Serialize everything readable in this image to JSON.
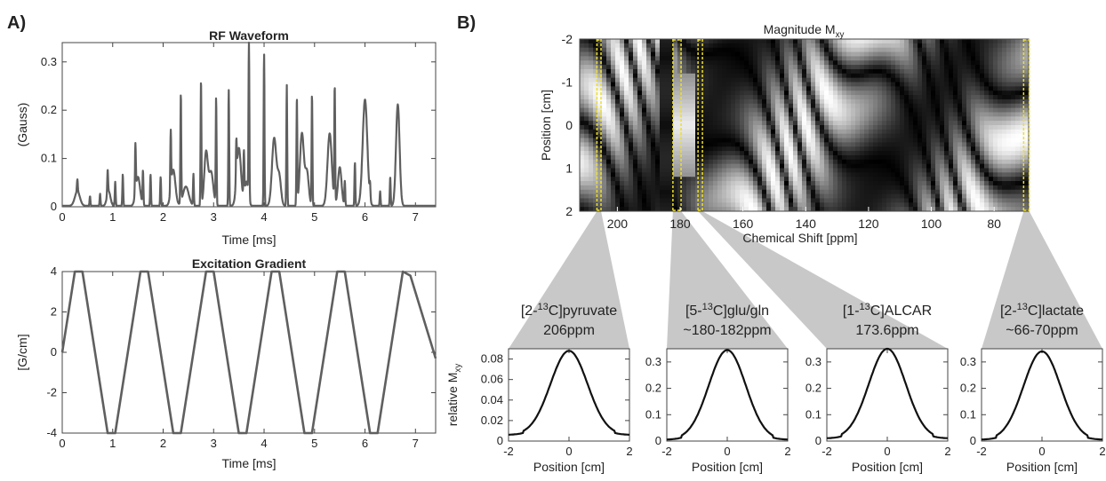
{
  "panels": {
    "a_label": "A)",
    "b_label": "B)"
  },
  "colors": {
    "trace": "#5f5f5f",
    "profile": "#111111",
    "highlight": "#f0e020",
    "wedge": "#c8c8c8",
    "axis": "#444444"
  },
  "chart_data": [
    {
      "id": "rf",
      "type": "line",
      "title": "RF Waveform",
      "xlabel": "Time [ms]",
      "ylabel": "(Gauss)",
      "xlim": [
        0,
        7.4
      ],
      "ylim": [
        0,
        0.34
      ],
      "xticks": [
        0,
        1,
        2,
        3,
        4,
        5,
        6,
        7
      ],
      "yticks": [
        0,
        0.1,
        0.2,
        0.3
      ],
      "ytick_labels": [
        "0",
        "0.1",
        "0.2",
        "0.3"
      ],
      "spikes": [
        {
          "x": 0.3,
          "y": 0.025
        },
        {
          "x": 0.55,
          "y": 0.02
        },
        {
          "x": 0.75,
          "y": 0.025
        },
        {
          "x": 0.9,
          "y": 0.05
        },
        {
          "x": 1.05,
          "y": 0.05
        },
        {
          "x": 1.2,
          "y": 0.065
        },
        {
          "x": 1.45,
          "y": 0.1
        },
        {
          "x": 1.6,
          "y": 0.07
        },
        {
          "x": 1.75,
          "y": 0.065
        },
        {
          "x": 1.95,
          "y": 0.06
        },
        {
          "x": 2.15,
          "y": 0.12
        },
        {
          "x": 2.35,
          "y": 0.225
        },
        {
          "x": 2.6,
          "y": 0.065
        },
        {
          "x": 2.75,
          "y": 0.26
        },
        {
          "x": 3.05,
          "y": 0.22
        },
        {
          "x": 3.3,
          "y": 0.24
        },
        {
          "x": 3.45,
          "y": 0.08
        },
        {
          "x": 3.6,
          "y": 0.09
        },
        {
          "x": 3.7,
          "y": 0.32
        },
        {
          "x": 4.0,
          "y": 0.315
        },
        {
          "x": 4.45,
          "y": 0.25
        },
        {
          "x": 4.65,
          "y": 0.22
        },
        {
          "x": 4.95,
          "y": 0.23
        },
        {
          "x": 5.4,
          "y": 0.24
        },
        {
          "x": 5.6,
          "y": 0.05
        },
        {
          "x": 5.8,
          "y": 0.09
        },
        {
          "x": 6.1,
          "y": 0.03
        },
        {
          "x": 6.3,
          "y": 0.03
        },
        {
          "x": 6.5,
          "y": 0.06
        }
      ],
      "lobes": [
        {
          "x": 0.3,
          "y": 0.03,
          "w": 0.07
        },
        {
          "x": 0.92,
          "y": 0.03,
          "w": 0.05
        },
        {
          "x": 1.5,
          "y": 0.06,
          "w": 0.06
        },
        {
          "x": 2.2,
          "y": 0.075,
          "w": 0.06
        },
        {
          "x": 2.45,
          "y": 0.04,
          "w": 0.08
        },
        {
          "x": 2.85,
          "y": 0.11,
          "w": 0.05
        },
        {
          "x": 2.95,
          "y": 0.07,
          "w": 0.06
        },
        {
          "x": 3.5,
          "y": 0.12,
          "w": 0.06
        },
        {
          "x": 3.65,
          "y": 0.05,
          "w": 0.05
        },
        {
          "x": 4.2,
          "y": 0.14,
          "w": 0.06
        },
        {
          "x": 4.3,
          "y": 0.06,
          "w": 0.05
        },
        {
          "x": 4.75,
          "y": 0.15,
          "w": 0.055
        },
        {
          "x": 4.85,
          "y": 0.07,
          "w": 0.05
        },
        {
          "x": 5.3,
          "y": 0.15,
          "w": 0.06
        },
        {
          "x": 5.5,
          "y": 0.08,
          "w": 0.05
        },
        {
          "x": 6.0,
          "y": 0.22,
          "w": 0.065
        },
        {
          "x": 6.65,
          "y": 0.21,
          "w": 0.05
        }
      ]
    },
    {
      "id": "grad",
      "type": "line",
      "title": "Excitation Gradient",
      "xlabel": "Time [ms]",
      "ylabel": "[G/cm]",
      "xlim": [
        0,
        7.4
      ],
      "ylim": [
        -4,
        4
      ],
      "xticks": [
        0,
        1,
        2,
        3,
        4,
        5,
        6,
        7
      ],
      "yticks": [
        -4,
        -2,
        0,
        2,
        4
      ],
      "x": [
        0,
        0.25,
        0.4,
        0.9,
        1.05,
        1.55,
        1.7,
        2.2,
        2.35,
        2.85,
        3.0,
        3.5,
        3.65,
        4.15,
        4.3,
        4.8,
        4.95,
        5.45,
        5.6,
        6.1,
        6.25,
        6.75,
        6.9,
        7.4
      ],
      "y": [
        0,
        4,
        4,
        -4,
        -4,
        4,
        4,
        -4,
        -4,
        4,
        4,
        -4,
        -4,
        4,
        4,
        -4,
        -4,
        4,
        4,
        -4,
        -4,
        4,
        3.8,
        -0.3
      ]
    },
    {
      "id": "mxy",
      "type": "heatmap",
      "title_main": "Magnitude M",
      "title_sub": "xy",
      "xlabel": "Chemical Shift [ppm]",
      "ylabel": "Position [cm]",
      "xlim": [
        212,
        69
      ],
      "ylim": [
        -2,
        2
      ],
      "xticks": [
        200,
        180,
        160,
        140,
        120,
        100,
        80
      ],
      "yticks": [
        -2,
        -1,
        0,
        1,
        2
      ],
      "highlight_ranges": [
        [
          206.5,
          205.2
        ],
        [
          182.3,
          179.7
        ],
        [
          174.3,
          172.9
        ],
        [
          70.6,
          68.8
        ]
      ]
    }
  ],
  "profiles": [
    {
      "label_prefix": "[2-",
      "label_sup": "13",
      "label_suffix": "C]pyruvate",
      "ppm": "206ppm",
      "ppm_center": 206,
      "chart_data": {
        "type": "line",
        "xlabel": "Position [cm]",
        "ylabel_main": "relative M",
        "ylabel_sub": "xy",
        "xlim": [
          -2,
          2
        ],
        "ylim": [
          0,
          0.09
        ],
        "xticks": [
          -2,
          0,
          2
        ],
        "yticks": [
          0,
          0.02,
          0.04,
          0.06,
          0.08
        ],
        "ytick_labels": [
          "0",
          "0.02",
          "0.04",
          "0.06",
          "0.08"
        ],
        "peak": 0.088,
        "edge": 0.006
      }
    },
    {
      "label_prefix": "[5-",
      "label_sup": "13",
      "label_suffix": "C]glu/gln",
      "ppm": "~180-182ppm",
      "ppm_center": 181,
      "chart_data": {
        "type": "line",
        "xlabel": "Position [cm]",
        "xlim": [
          -2,
          2
        ],
        "ylim": [
          0,
          0.35
        ],
        "xticks": [
          -2,
          0,
          2
        ],
        "yticks": [
          0,
          0.1,
          0.2,
          0.3
        ],
        "ytick_labels": [
          "0",
          "0.1",
          "0.2",
          "0.3"
        ],
        "peak": 0.345,
        "edge": 0.005
      }
    },
    {
      "label_prefix": "[1-",
      "label_sup": "13",
      "label_suffix": "C]ALCAR",
      "ppm": "173.6ppm",
      "ppm_center": 173.6,
      "chart_data": {
        "type": "line",
        "xlabel": "Position [cm]",
        "xlim": [
          -2,
          2
        ],
        "ylim": [
          0,
          0.35
        ],
        "xticks": [
          -2,
          0,
          2
        ],
        "yticks": [
          0,
          0.1,
          0.2,
          0.3
        ],
        "ytick_labels": [
          "0",
          "0.1",
          "0.2",
          "0.3"
        ],
        "peak": 0.35,
        "edge": 0.01
      }
    },
    {
      "label_prefix": "[2-",
      "label_sup": "13",
      "label_suffix": "C]lactate",
      "ppm": "~66-70ppm",
      "ppm_center": 69.7,
      "chart_data": {
        "type": "line",
        "xlabel": "Position [cm]",
        "xlim": [
          -2,
          2
        ],
        "ylim": [
          0,
          0.35
        ],
        "xticks": [
          -2,
          0,
          2
        ],
        "yticks": [
          0,
          0.1,
          0.2,
          0.3
        ],
        "ytick_labels": [
          "0",
          "0.1",
          "0.2",
          "0.3"
        ],
        "peak": 0.34,
        "edge": 0.005
      }
    }
  ]
}
